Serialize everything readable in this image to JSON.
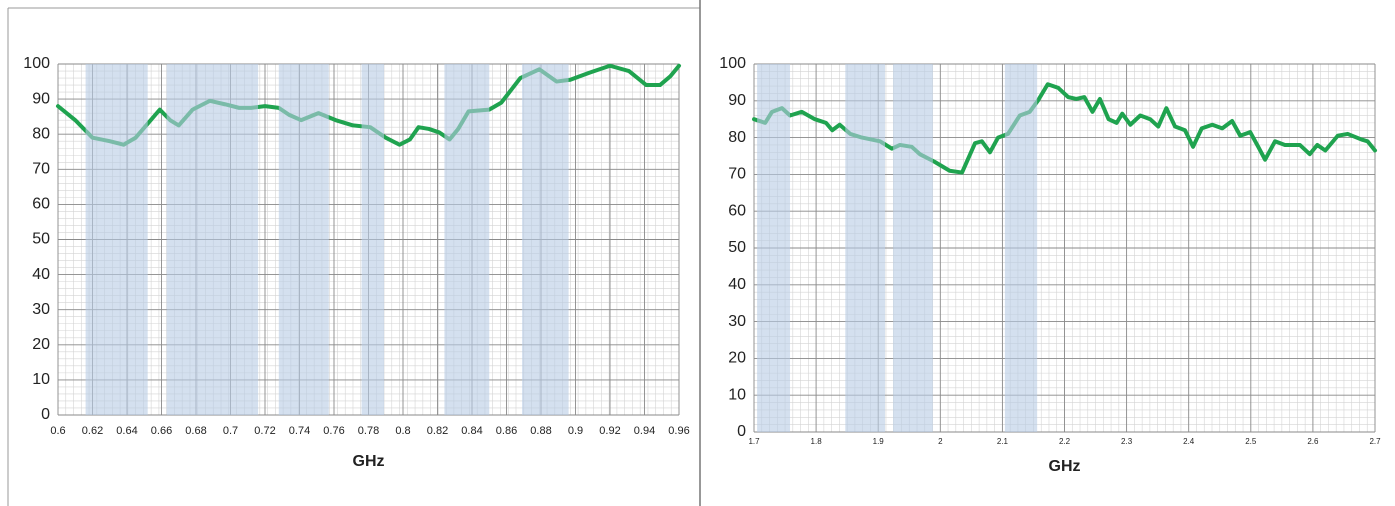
{
  "chart_data": [
    {
      "type": "line",
      "x_label": "GHz",
      "color": "#1fa34f",
      "band_color": "#b8cce4",
      "grid": true,
      "xlim": [
        0.6,
        0.96
      ],
      "xticks": [
        0.6,
        0.62,
        0.64,
        0.66,
        0.68,
        0.7,
        0.72,
        0.74,
        0.76,
        0.78,
        0.8,
        0.82,
        0.84,
        0.86,
        0.88,
        0.9,
        0.92,
        0.94,
        0.96
      ],
      "ylim": [
        0,
        100
      ],
      "yticks": [
        0,
        10,
        20,
        30,
        40,
        50,
        60,
        70,
        80,
        90,
        100
      ],
      "bands": [
        [
          0.616,
          0.652
        ],
        [
          0.663,
          0.716
        ],
        [
          0.728,
          0.757
        ],
        [
          0.776,
          0.789
        ],
        [
          0.824,
          0.85
        ],
        [
          0.869,
          0.896
        ]
      ],
      "x": [
        0.6,
        0.61,
        0.62,
        0.63,
        0.638,
        0.645,
        0.652,
        0.659,
        0.665,
        0.67,
        0.678,
        0.688,
        0.697,
        0.705,
        0.712,
        0.72,
        0.728,
        0.734,
        0.741,
        0.751,
        0.761,
        0.771,
        0.781,
        0.79,
        0.798,
        0.804,
        0.809,
        0.815,
        0.821,
        0.827,
        0.832,
        0.838,
        0.85,
        0.857,
        0.868,
        0.879,
        0.889,
        0.897,
        0.908,
        0.92,
        0.931,
        0.941,
        0.949,
        0.955,
        0.96
      ],
      "values": [
        88,
        84,
        79,
        78,
        77,
        79,
        83,
        87,
        84,
        82.5,
        87,
        89.5,
        88.5,
        87.5,
        87.5,
        88,
        87.5,
        85.5,
        84,
        86,
        84,
        82.5,
        82,
        79,
        77,
        78.5,
        82,
        81.5,
        80.5,
        78.5,
        81.5,
        86.5,
        87,
        89,
        96,
        98.5,
        95,
        95.5,
        97.5,
        99.5,
        98,
        94,
        94,
        96.5,
        99.5
      ]
    },
    {
      "type": "line",
      "x_label": "GHz",
      "color": "#1fa34f",
      "band_color": "#b8cce4",
      "grid": true,
      "xlim": [
        1.7,
        2.7
      ],
      "xticks": [
        1.7,
        1.8,
        1.9,
        2,
        2.1,
        2.2,
        2.3,
        2.4,
        2.5,
        2.6,
        2.7
      ],
      "ylim": [
        0,
        100
      ],
      "yticks": [
        0,
        10,
        20,
        30,
        40,
        50,
        60,
        70,
        80,
        90,
        100
      ],
      "bands": [
        [
          1.705,
          1.758
        ],
        [
          1.847,
          1.911
        ],
        [
          1.924,
          1.988
        ],
        [
          2.104,
          2.156
        ]
      ],
      "x": [
        1.7,
        1.718,
        1.729,
        1.745,
        1.758,
        1.777,
        1.798,
        1.816,
        1.826,
        1.838,
        1.855,
        1.874,
        1.903,
        1.922,
        1.935,
        1.954,
        1.967,
        1.99,
        2.015,
        2.035,
        2.056,
        2.067,
        2.08,
        2.093,
        2.109,
        2.128,
        2.144,
        2.157,
        2.173,
        2.19,
        2.206,
        2.219,
        2.232,
        2.245,
        2.257,
        2.271,
        2.284,
        2.293,
        2.306,
        2.322,
        2.338,
        2.351,
        2.364,
        2.378,
        2.394,
        2.407,
        2.421,
        2.438,
        2.454,
        2.47,
        2.483,
        2.499,
        2.512,
        2.523,
        2.539,
        2.555,
        2.579,
        2.595,
        2.607,
        2.62,
        2.64,
        2.656,
        2.678,
        2.688,
        2.7
      ],
      "values": [
        85,
        84,
        87,
        88,
        86,
        87,
        85,
        84,
        82,
        83.5,
        81,
        80,
        79,
        77,
        78,
        77.5,
        75.5,
        73.5,
        71,
        70.5,
        78.5,
        79,
        76,
        80,
        81,
        86,
        87,
        90,
        94.5,
        93.5,
        91,
        90.5,
        91,
        87,
        90.5,
        85,
        84,
        86.5,
        83.5,
        86,
        85,
        83,
        88,
        83,
        82,
        77.5,
        82.5,
        83.5,
        82.5,
        84.5,
        80.5,
        81.5,
        77.5,
        74,
        79,
        78,
        78,
        75.5,
        78,
        76.5,
        80.5,
        81,
        79.5,
        79,
        76.5
      ]
    }
  ]
}
